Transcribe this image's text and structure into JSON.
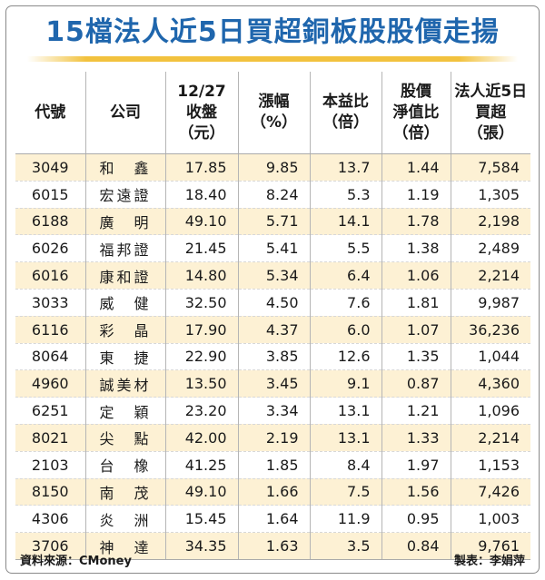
{
  "title": "15檔法人近5日買超銅板股股價走揚",
  "columns": [
    {
      "lines": [
        "代號"
      ]
    },
    {
      "lines": [
        "公司"
      ]
    },
    {
      "lines": [
        "12/27",
        "收盤",
        "（元）"
      ]
    },
    {
      "lines": [
        "漲幅",
        "（%）"
      ]
    },
    {
      "lines": [
        "本益比",
        "（倍）"
      ]
    },
    {
      "lines": [
        "股價",
        "淨值比",
        "（倍）"
      ]
    },
    {
      "lines": [
        "法人近5日",
        "買超",
        "（張）"
      ]
    }
  ],
  "rows": [
    {
      "code": "3049",
      "company": "和　鑫",
      "close": "17.85",
      "change": "9.85",
      "pe": "13.7",
      "pb": "1.44",
      "net_buy": "7,584"
    },
    {
      "code": "6015",
      "company": "宏遠證",
      "close": "18.40",
      "change": "8.24",
      "pe": "5.3",
      "pb": "1.19",
      "net_buy": "1,305"
    },
    {
      "code": "6188",
      "company": "廣　明",
      "close": "49.10",
      "change": "5.71",
      "pe": "14.1",
      "pb": "1.78",
      "net_buy": "2,198"
    },
    {
      "code": "6026",
      "company": "福邦證",
      "close": "21.45",
      "change": "5.41",
      "pe": "5.5",
      "pb": "1.38",
      "net_buy": "2,489"
    },
    {
      "code": "6016",
      "company": "康和證",
      "close": "14.80",
      "change": "5.34",
      "pe": "6.4",
      "pb": "1.06",
      "net_buy": "2,214"
    },
    {
      "code": "3033",
      "company": "威　健",
      "close": "32.50",
      "change": "4.50",
      "pe": "7.6",
      "pb": "1.81",
      "net_buy": "9,987"
    },
    {
      "code": "6116",
      "company": "彩　晶",
      "close": "17.90",
      "change": "4.37",
      "pe": "6.0",
      "pb": "1.07",
      "net_buy": "36,236"
    },
    {
      "code": "8064",
      "company": "東　捷",
      "close": "22.90",
      "change": "3.85",
      "pe": "12.6",
      "pb": "1.35",
      "net_buy": "1,044"
    },
    {
      "code": "4960",
      "company": "誠美材",
      "close": "13.50",
      "change": "3.45",
      "pe": "9.1",
      "pb": "0.87",
      "net_buy": "4,360"
    },
    {
      "code": "6251",
      "company": "定　穎",
      "close": "23.20",
      "change": "3.34",
      "pe": "13.1",
      "pb": "1.21",
      "net_buy": "1,096"
    },
    {
      "code": "8021",
      "company": "尖　點",
      "close": "42.00",
      "change": "2.19",
      "pe": "13.1",
      "pb": "1.33",
      "net_buy": "2,214"
    },
    {
      "code": "2103",
      "company": "台　橡",
      "close": "41.25",
      "change": "1.85",
      "pe": "8.4",
      "pb": "1.97",
      "net_buy": "1,153"
    },
    {
      "code": "8150",
      "company": "南　茂",
      "close": "49.10",
      "change": "1.66",
      "pe": "7.5",
      "pb": "1.56",
      "net_buy": "7,426"
    },
    {
      "code": "4306",
      "company": "炎　洲",
      "close": "15.45",
      "change": "1.64",
      "pe": "11.9",
      "pb": "0.95",
      "net_buy": "1,003"
    },
    {
      "code": "3706",
      "company": "神　達",
      "close": "34.35",
      "change": "1.63",
      "pe": "3.5",
      "pb": "0.84",
      "net_buy": "9,761"
    }
  ],
  "footer": {
    "source": "資料來源：CMoney",
    "credit": "製表：李娟萍"
  },
  "colors": {
    "title": "#1f66ad",
    "accent_rule": "#f2c23e",
    "row_stripe": "#fdf1d4"
  }
}
